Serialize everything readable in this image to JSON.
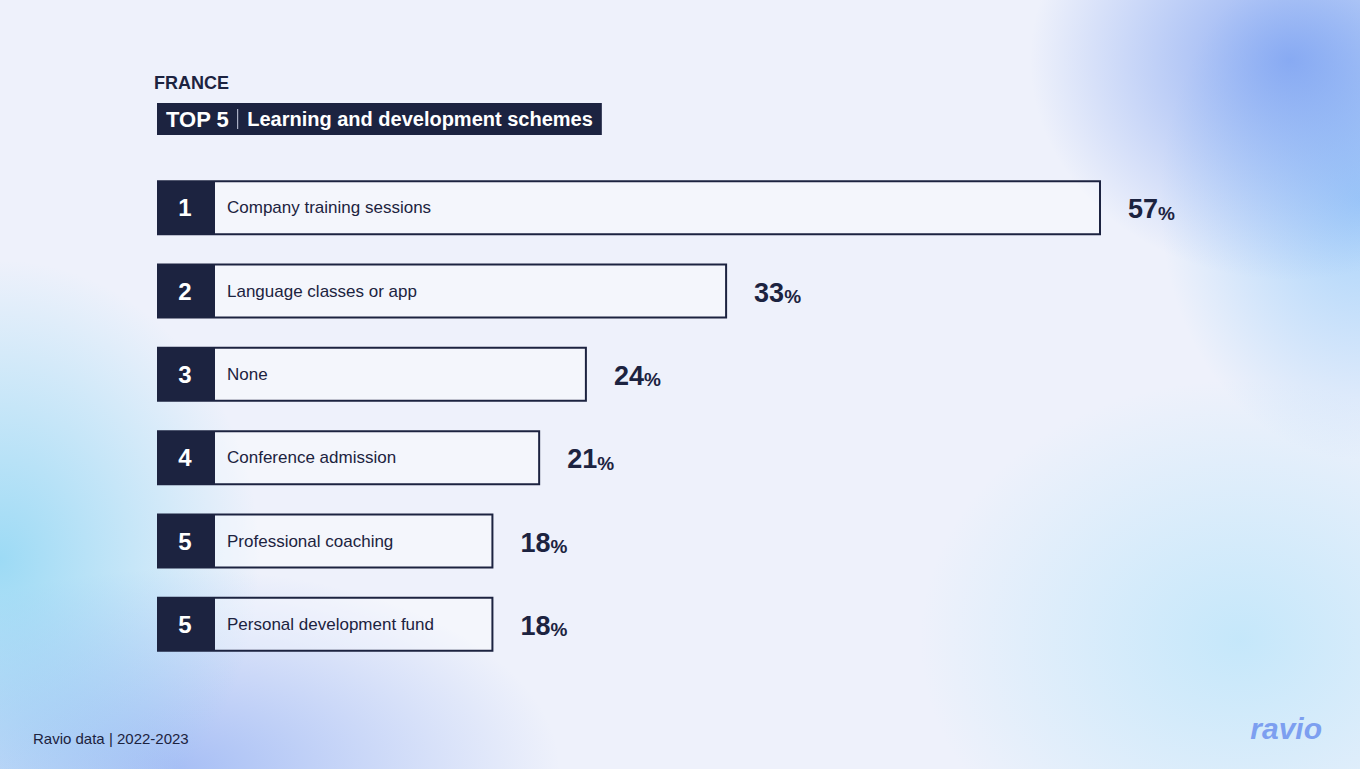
{
  "chart_data": {
    "type": "bar",
    "subtitle": "FRANCE",
    "title_badge": "TOP 5",
    "title": "Learning and development schemes",
    "source": "Ravio data | 2022-2023",
    "brand": "ravio",
    "orientation": "horizontal",
    "ranks": [
      1,
      2,
      3,
      4,
      5,
      5
    ],
    "categories": [
      "Company training sessions",
      "Language classes or app",
      "None",
      "Conference admission",
      "Professional coaching",
      "Personal development fund"
    ],
    "values": [
      57,
      33,
      24,
      21,
      18,
      18
    ],
    "value_labels": [
      "57%",
      "33%",
      "24%",
      "21%",
      "18%",
      "18%"
    ],
    "xlim": [
      0,
      57
    ],
    "color": "#1c2340",
    "data_labels": true,
    "tick_labels": false,
    "grid": false
  }
}
